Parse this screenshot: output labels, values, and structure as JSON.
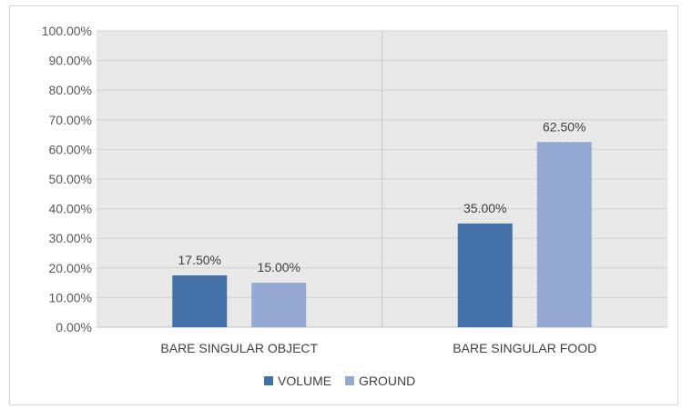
{
  "chart_data": {
    "type": "bar",
    "categories": [
      "BARE SINGULAR OBJECT",
      "BARE SINGULAR FOOD"
    ],
    "series": [
      {
        "name": "VOLUME",
        "values": [
          17.5,
          35.0
        ],
        "color": "#4472a8"
      },
      {
        "name": "GROUND",
        "values": [
          15.0,
          62.5
        ],
        "color": "#93a9d2"
      }
    ],
    "ylim": [
      0,
      100
    ],
    "yticks": [
      "0.00%",
      "10.00%",
      "20.00%",
      "30.00%",
      "40.00%",
      "50.00%",
      "60.00%",
      "70.00%",
      "80.00%",
      "90.00%",
      "100.00%"
    ],
    "data_labels": [
      [
        "17.50%",
        "35.00%"
      ],
      [
        "15.00%",
        "62.50%"
      ]
    ],
    "grid": true,
    "legend": "bottom",
    "plot_background": "#e9e9e9",
    "gridline_color": "#d0d0d0"
  }
}
